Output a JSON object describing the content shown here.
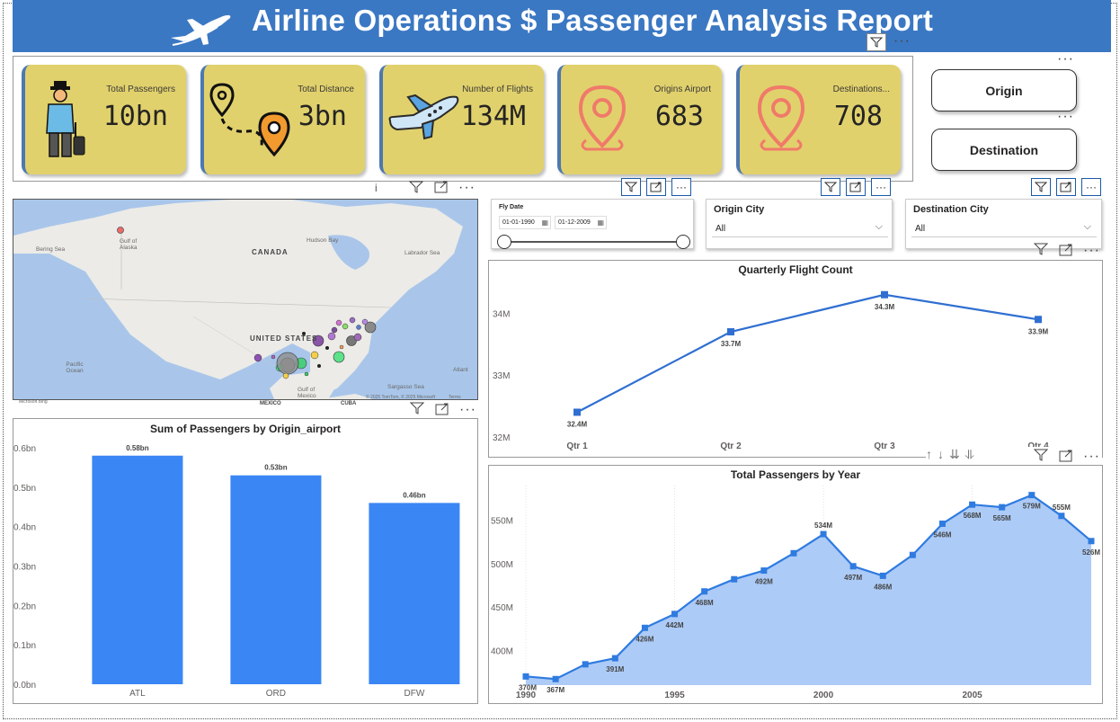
{
  "header": {
    "title": "Airline Operations $ Passenger Analysis Report",
    "icon": "airplane-icon"
  },
  "kpis": [
    {
      "label": "Total Passengers",
      "value": "10bn",
      "icon": "traveler-icon"
    },
    {
      "label": "Total Distance",
      "value": "3bn",
      "icon": "route-icon"
    },
    {
      "label": "Number of Flights",
      "value": "134M",
      "icon": "airplane-icon"
    },
    {
      "label": "Origins Airport",
      "value": "683",
      "icon": "location-pin-icon"
    },
    {
      "label": "Destinations...",
      "value": "708",
      "icon": "location-pin-icon"
    }
  ],
  "nav_buttons": {
    "origin": "Origin",
    "destination": "Destination"
  },
  "slicers": {
    "fly_date": {
      "title": "Fly Date",
      "start": "01-01-1990",
      "end": "01-12-2009"
    },
    "origin_city": {
      "title": "Origin City",
      "value": "All"
    },
    "destination_city": {
      "title": "Destination City",
      "value": "All"
    }
  },
  "map": {
    "labels": {
      "canada": "CANADA",
      "united_states": "UNITED STATES",
      "mexico": "MEXICO",
      "cuba": "CUBA",
      "hudson_bay": "Hudson Bay",
      "labrador_sea": "Labrador Sea",
      "bering_sea": "Bering Sea",
      "gulf_of_alaska": "Gulf of Alaska",
      "pacific_ocean": "Pacific Ocean",
      "atlantic": "Atlant",
      "gulf_of_mexico": "Gulf of Mexico",
      "sargasso_sea": "Sargasso Sea",
      "attribution": "© 2025 TomTom, © 2025 Microsoft",
      "terms": "Terms",
      "bing": "Microsoft Bing"
    }
  },
  "colors": {
    "header": "#3b78c3",
    "kpi_card": "#e1d16c",
    "bar": "#3a86f5",
    "line": "#2f6fd1",
    "area": "#a9c8f7"
  },
  "chart_data": [
    {
      "type": "line",
      "title": "Quarterly Flight Count",
      "categories": [
        "Qtr 1",
        "Qtr 2",
        "Qtr 3",
        "Qtr 4"
      ],
      "category_labels_visible": [
        "Qtr 1",
        "Qtr 2",
        "Qtr 3",
        "Qtr 4"
      ],
      "values": [
        32.4,
        33.7,
        34.3,
        33.9
      ],
      "data_labels": [
        "32.4M",
        "33.7M",
        "34.3M",
        "33.9M"
      ],
      "ylim": [
        32,
        34.5
      ],
      "yticks": [
        {
          "v": 32,
          "label": "32M"
        },
        {
          "v": 33,
          "label": "33M"
        },
        {
          "v": 34,
          "label": "34M"
        }
      ],
      "unit": "M"
    },
    {
      "type": "bar",
      "title": "Sum of Passengers by Origin_airport",
      "categories": [
        "ATL",
        "ORD",
        "DFW"
      ],
      "values": [
        0.58,
        0.53,
        0.46
      ],
      "data_labels": [
        "0.58bn",
        "0.53bn",
        "0.46bn"
      ],
      "ylim": [
        0,
        0.6
      ],
      "yticks": [
        {
          "v": 0.0,
          "label": "0.0bn"
        },
        {
          "v": 0.1,
          "label": "0.1bn"
        },
        {
          "v": 0.2,
          "label": "0.2bn"
        },
        {
          "v": 0.3,
          "label": "0.3bn"
        },
        {
          "v": 0.4,
          "label": "0.4bn"
        },
        {
          "v": 0.5,
          "label": "0.5bn"
        },
        {
          "v": 0.6,
          "label": "0.6bn"
        }
      ]
    },
    {
      "type": "area",
      "title": "Total Passengers by Year",
      "x": [
        1990,
        1991,
        1992,
        1993,
        1994,
        1995,
        1996,
        1997,
        1998,
        1999,
        2000,
        2001,
        2002,
        2003,
        2004,
        2005,
        2006,
        2007,
        2008,
        2009
      ],
      "values": [
        370,
        367,
        384,
        391,
        426,
        442,
        468,
        482,
        492,
        512,
        534,
        497,
        486,
        510,
        546,
        568,
        565,
        579,
        555,
        526
      ],
      "data_labels": [
        "370M",
        "367M",
        "",
        "391M",
        "426M",
        "442M",
        "468M",
        "",
        "492M",
        "",
        "534M",
        "497M",
        "486M",
        "",
        "546M",
        "568M",
        "565M",
        "579M",
        "555M",
        "526M"
      ],
      "ylim": [
        360,
        590
      ],
      "yticks": [
        {
          "v": 400,
          "label": "400M"
        },
        {
          "v": 450,
          "label": "450M"
        },
        {
          "v": 500,
          "label": "500M"
        },
        {
          "v": 550,
          "label": "550M"
        }
      ],
      "xticks": [
        1990,
        1995,
        2000,
        2005
      ]
    }
  ]
}
